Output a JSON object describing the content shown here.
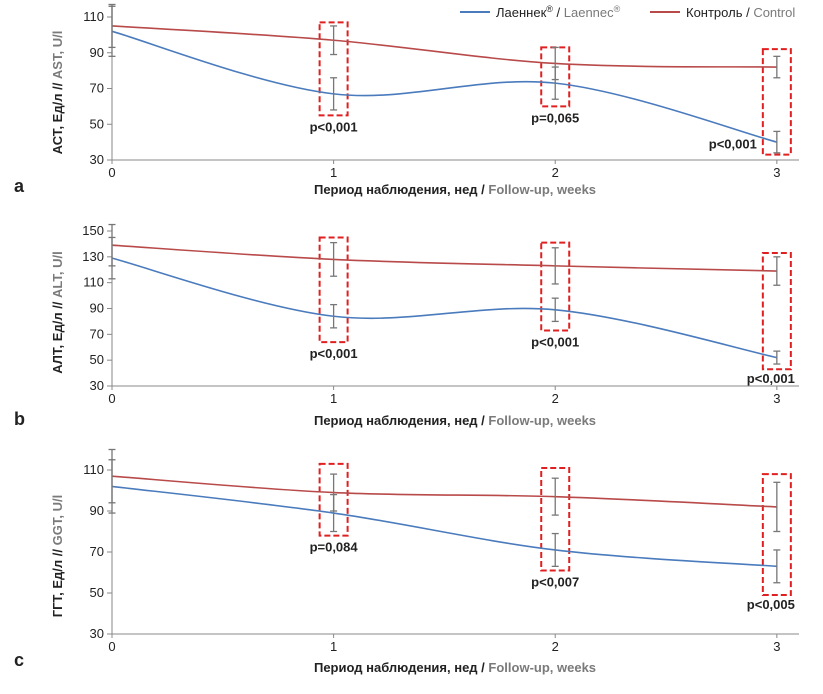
{
  "colors": {
    "laennec": "#4a7bbd",
    "control": "#b94a4a",
    "axis": "#888888",
    "highlight": "#e02020",
    "errorbar": "#777777"
  },
  "legend": [
    {
      "name_ru": "Лаеннек",
      "sup": "®",
      "sep": " / ",
      "name_en": "Laennec",
      "sup_en": "®",
      "series": "laennec"
    },
    {
      "name_ru": "Контроль",
      "sup": "",
      "sep": " / ",
      "name_en": "Control",
      "sup_en": "",
      "series": "control"
    }
  ],
  "chart_data": [
    {
      "type": "line",
      "panel": "a",
      "xlabel_ru": "Период наблюдения, нед",
      "xlabel_sep": " / ",
      "xlabel_en": "Follow-up, weeks",
      "ylabel_ru": "АСТ, Ед/л",
      "ylabel_sep": " // ",
      "ylabel_en": "AST, U/l",
      "x": [
        0,
        1,
        2,
        3
      ],
      "xlim": [
        0,
        3.1
      ],
      "ylim": [
        30,
        110
      ],
      "yticks": [
        30,
        50,
        70,
        90,
        110
      ],
      "series": [
        {
          "key": "laennec",
          "values": [
            102,
            67,
            73,
            40
          ],
          "err": [
            14,
            9,
            9,
            6
          ]
        },
        {
          "key": "control",
          "values": [
            105,
            97,
            84,
            82
          ],
          "err": [
            12,
            8,
            9,
            6
          ]
        }
      ],
      "pvalues": [
        {
          "x": 1,
          "text": "p<0,001"
        },
        {
          "x": 2,
          "text": "p=0,065"
        },
        {
          "x": 3,
          "text": "p<0,001"
        }
      ],
      "highlight_ranges": [
        [
          55,
          107
        ],
        [
          60,
          93
        ],
        [
          33,
          92
        ]
      ]
    },
    {
      "type": "line",
      "panel": "b",
      "xlabel_ru": "Период наблюдения, нед",
      "xlabel_sep": " / ",
      "xlabel_en": "Follow-up, weeks",
      "ylabel_ru": "АЛТ, Ед/л",
      "ylabel_sep": " // ",
      "ylabel_en": "ALT, U/l",
      "x": [
        0,
        1,
        2,
        3
      ],
      "xlim": [
        0,
        3.1
      ],
      "ylim": [
        30,
        150
      ],
      "yticks": [
        30,
        50,
        70,
        90,
        110,
        130,
        150
      ],
      "series": [
        {
          "key": "laennec",
          "values": [
            129,
            84,
            89,
            52
          ],
          "err": [
            16,
            9,
            9,
            5
          ]
        },
        {
          "key": "control",
          "values": [
            139,
            128,
            123,
            119
          ],
          "err": [
            16,
            13,
            14,
            11
          ]
        }
      ],
      "pvalues": [
        {
          "x": 1,
          "text": "p<0,001"
        },
        {
          "x": 2,
          "text": "p<0,001"
        },
        {
          "x": 3,
          "text": "p<0,001"
        }
      ],
      "highlight_ranges": [
        [
          64,
          145
        ],
        [
          73,
          141
        ],
        [
          43,
          133
        ]
      ]
    },
    {
      "type": "line",
      "panel": "c",
      "xlabel_ru": "Период наблюдения, нед",
      "xlabel_sep": " / ",
      "xlabel_en": "Follow-up, weeks",
      "ylabel_ru": "ГГТ, Ед/л",
      "ylabel_sep": " // ",
      "ylabel_en": "GGT, U/l",
      "x": [
        0,
        1,
        2,
        3
      ],
      "xlim": [
        0,
        3.1
      ],
      "ylim": [
        30,
        110
      ],
      "yticks": [
        30,
        50,
        70,
        90,
        110
      ],
      "series": [
        {
          "key": "laennec",
          "values": [
            102,
            89,
            71,
            63
          ],
          "err": [
            13,
            9,
            8,
            8
          ]
        },
        {
          "key": "control",
          "values": [
            107,
            99,
            97,
            92
          ],
          "err": [
            13,
            9,
            9,
            12
          ]
        }
      ],
      "pvalues": [
        {
          "x": 1,
          "text": "p=0,084"
        },
        {
          "x": 2,
          "text": "p<0,007"
        },
        {
          "x": 3,
          "text": "p<0,005"
        }
      ],
      "highlight_ranges": [
        [
          78,
          113
        ],
        [
          61,
          111
        ],
        [
          49,
          108
        ]
      ]
    }
  ]
}
